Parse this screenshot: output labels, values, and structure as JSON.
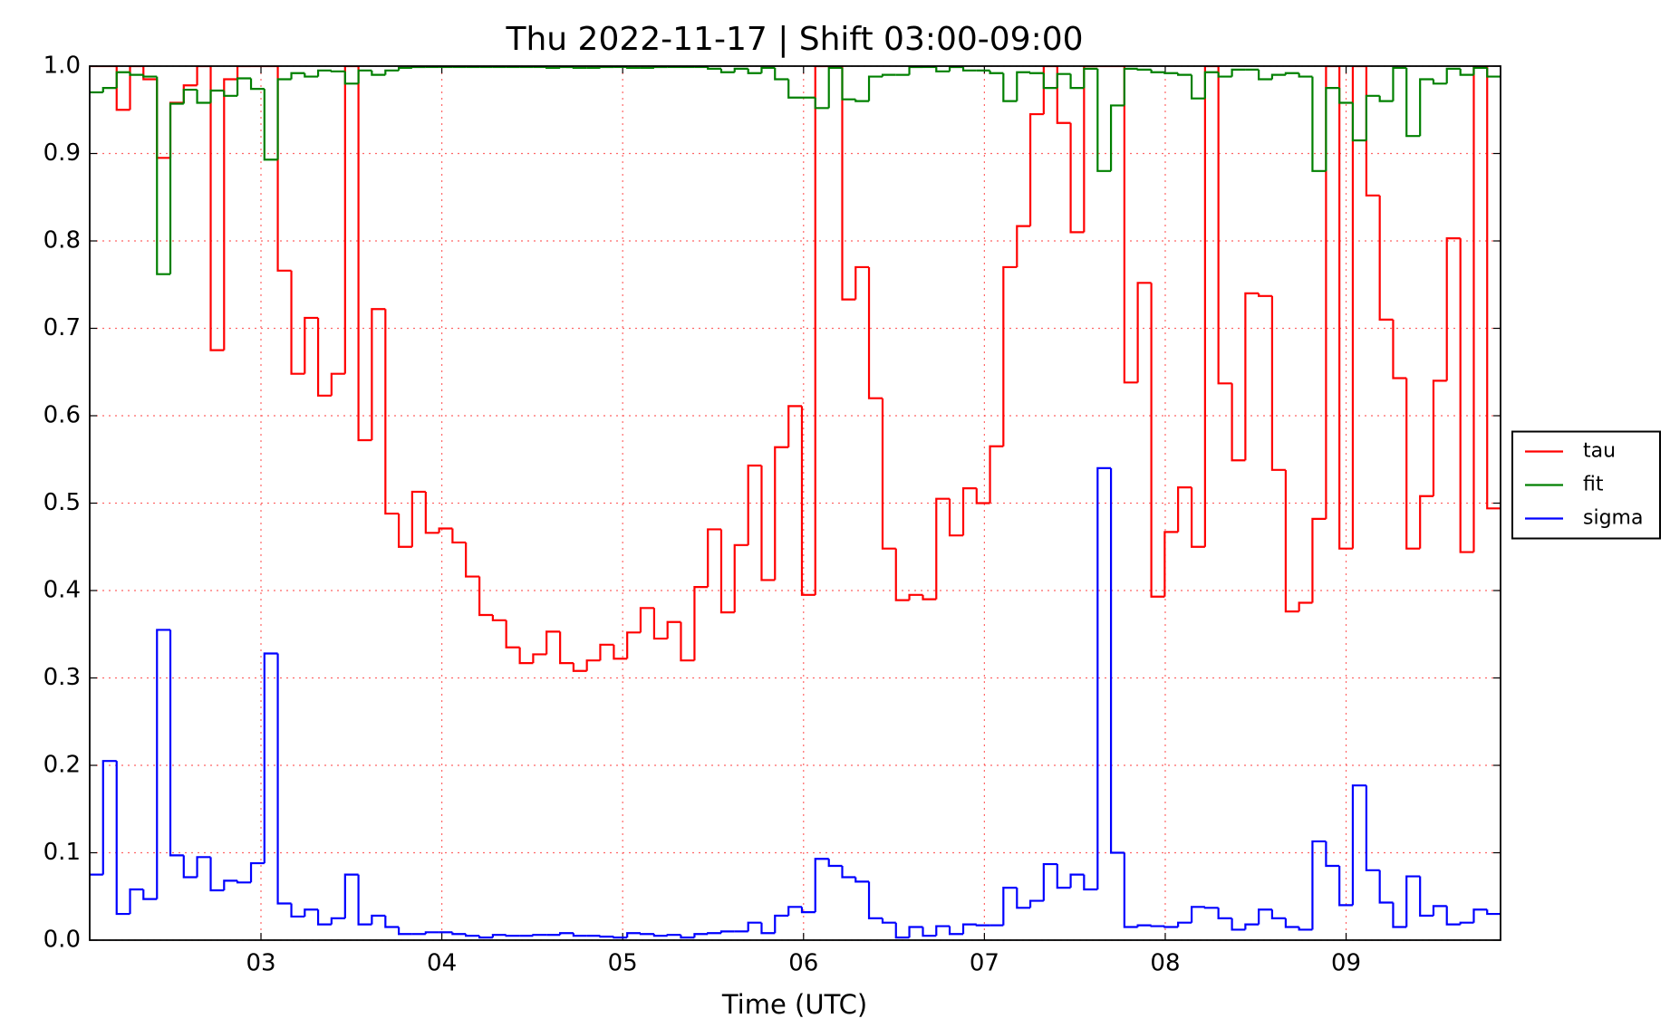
{
  "chart_data": {
    "type": "step",
    "title": "Thu 2022-11-17 | Shift 03:00-09:00",
    "x_label": "Time (UTC)",
    "x": [
      2.053,
      2.127,
      2.202,
      2.276,
      2.35,
      2.425,
      2.499,
      2.573,
      2.647,
      2.722,
      2.796,
      2.87,
      2.945,
      3.019,
      3.093,
      3.168,
      3.242,
      3.316,
      3.39,
      3.465,
      3.539,
      3.613,
      3.688,
      3.762,
      3.836,
      3.911,
      3.985,
      4.059,
      4.133,
      4.208,
      4.282,
      4.356,
      4.431,
      4.505,
      4.579,
      4.654,
      4.728,
      4.802,
      4.876,
      4.951,
      5.025,
      5.099,
      5.174,
      5.248,
      5.322,
      5.397,
      5.471,
      5.545,
      5.619,
      5.694,
      5.768,
      5.842,
      5.917,
      5.991,
      6.065,
      6.14,
      6.214,
      6.288,
      6.362,
      6.437,
      6.511,
      6.585,
      6.66,
      6.734,
      6.808,
      6.883,
      6.957,
      7.031,
      7.105,
      7.18,
      7.254,
      7.328,
      7.403,
      7.477,
      7.551,
      7.626,
      7.7,
      7.774,
      7.848,
      7.923,
      7.997,
      8.071,
      8.146,
      8.22,
      8.294,
      8.369,
      8.443,
      8.517,
      8.591,
      8.666,
      8.74,
      8.814,
      8.889,
      8.963,
      9.037,
      9.112,
      9.186,
      9.26,
      9.334,
      9.409,
      9.483,
      9.557,
      9.632,
      9.706,
      9.78
    ],
    "series": [
      {
        "name": "tau",
        "color": "#ff0000",
        "values": [
          1.0,
          1.0,
          0.95,
          1.0,
          0.985,
          0.895,
          0.958,
          0.978,
          1.0,
          0.675,
          0.985,
          1.0,
          1.0,
          1.0,
          0.766,
          0.648,
          0.712,
          0.623,
          0.648,
          1.0,
          0.572,
          0.722,
          0.488,
          0.45,
          0.513,
          0.466,
          0.471,
          0.455,
          0.416,
          0.372,
          0.366,
          0.335,
          0.317,
          0.327,
          0.353,
          0.317,
          0.308,
          0.32,
          0.338,
          0.322,
          0.352,
          0.38,
          0.345,
          0.364,
          0.32,
          0.404,
          0.47,
          0.375,
          0.452,
          0.543,
          0.412,
          0.564,
          0.611,
          0.395,
          1.0,
          1.0,
          0.733,
          0.77,
          0.62,
          0.448,
          0.389,
          0.395,
          0.39,
          0.505,
          0.463,
          0.517,
          0.5,
          0.565,
          0.77,
          0.817,
          0.945,
          1.0,
          0.935,
          0.81,
          1.0,
          1.0,
          1.0,
          0.638,
          0.752,
          0.393,
          0.467,
          0.518,
          0.45,
          1.0,
          0.637,
          0.549,
          0.74,
          0.737,
          0.538,
          0.376,
          0.386,
          0.482,
          1.0,
          0.448,
          1.0,
          0.852,
          0.71,
          0.643,
          0.448,
          0.508,
          0.64,
          0.803,
          0.444,
          1.0,
          0.494
        ]
      },
      {
        "name": "fit",
        "color": "#008000",
        "values": [
          0.97,
          0.975,
          0.993,
          0.99,
          0.988,
          0.762,
          0.957,
          0.973,
          0.958,
          0.972,
          0.966,
          0.986,
          0.974,
          0.893,
          0.985,
          0.992,
          0.988,
          0.995,
          0.994,
          0.98,
          0.995,
          0.99,
          0.995,
          0.998,
          0.999,
          0.999,
          0.999,
          0.999,
          0.999,
          0.999,
          0.999,
          0.999,
          0.999,
          0.999,
          0.998,
          0.999,
          0.998,
          0.998,
          0.999,
          0.999,
          0.998,
          0.998,
          0.999,
          0.999,
          0.999,
          0.999,
          0.997,
          0.993,
          0.997,
          0.992,
          0.998,
          0.985,
          0.964,
          0.964,
          0.952,
          0.998,
          0.962,
          0.96,
          0.988,
          0.99,
          0.99,
          0.999,
          0.999,
          0.994,
          0.999,
          0.995,
          0.995,
          0.992,
          0.96,
          0.993,
          0.992,
          0.975,
          0.991,
          0.975,
          0.997,
          0.88,
          0.955,
          0.997,
          0.996,
          0.993,
          0.992,
          0.99,
          0.963,
          0.993,
          0.988,
          0.996,
          0.996,
          0.985,
          0.99,
          0.992,
          0.988,
          0.88,
          0.975,
          0.958,
          0.915,
          0.966,
          0.96,
          0.998,
          0.92,
          0.985,
          0.98,
          0.997,
          0.99,
          0.998,
          0.988
        ]
      },
      {
        "name": "sigma",
        "color": "#0000ff",
        "values": [
          0.075,
          0.205,
          0.03,
          0.058,
          0.047,
          0.355,
          0.097,
          0.072,
          0.095,
          0.057,
          0.068,
          0.066,
          0.088,
          0.328,
          0.042,
          0.027,
          0.035,
          0.018,
          0.025,
          0.075,
          0.018,
          0.028,
          0.015,
          0.007,
          0.007,
          0.009,
          0.009,
          0.007,
          0.005,
          0.003,
          0.006,
          0.005,
          0.005,
          0.006,
          0.006,
          0.008,
          0.005,
          0.005,
          0.004,
          0.003,
          0.008,
          0.007,
          0.005,
          0.006,
          0.003,
          0.007,
          0.008,
          0.01,
          0.01,
          0.02,
          0.008,
          0.028,
          0.038,
          0.032,
          0.093,
          0.085,
          0.072,
          0.067,
          0.025,
          0.02,
          0.003,
          0.015,
          0.005,
          0.016,
          0.007,
          0.018,
          0.017,
          0.017,
          0.06,
          0.037,
          0.045,
          0.087,
          0.06,
          0.075,
          0.058,
          0.54,
          0.1,
          0.015,
          0.017,
          0.016,
          0.015,
          0.02,
          0.038,
          0.037,
          0.025,
          0.012,
          0.018,
          0.035,
          0.025,
          0.015,
          0.012,
          0.113,
          0.085,
          0.04,
          0.177,
          0.08,
          0.043,
          0.015,
          0.073,
          0.028,
          0.039,
          0.018,
          0.02,
          0.035,
          0.03
        ]
      }
    ],
    "xlim": [
      2.053,
      9.854
    ],
    "xticks": [
      {
        "value": 3,
        "label": "03"
      },
      {
        "value": 4,
        "label": "04"
      },
      {
        "value": 5,
        "label": "05"
      },
      {
        "value": 6,
        "label": "06"
      },
      {
        "value": 7,
        "label": "07"
      },
      {
        "value": 8,
        "label": "08"
      },
      {
        "value": 9,
        "label": "09"
      }
    ],
    "ylim": [
      0,
      1
    ],
    "yticks": [
      {
        "value": 0,
        "label": "0.0"
      },
      0.1,
      0.2,
      0.3,
      0.4,
      0.5,
      0.6,
      0.7,
      0.8,
      0.9,
      {
        "value": 1,
        "label": "1.0"
      }
    ],
    "grid": true,
    "grid_color": "#ff6666",
    "legend": "right"
  }
}
